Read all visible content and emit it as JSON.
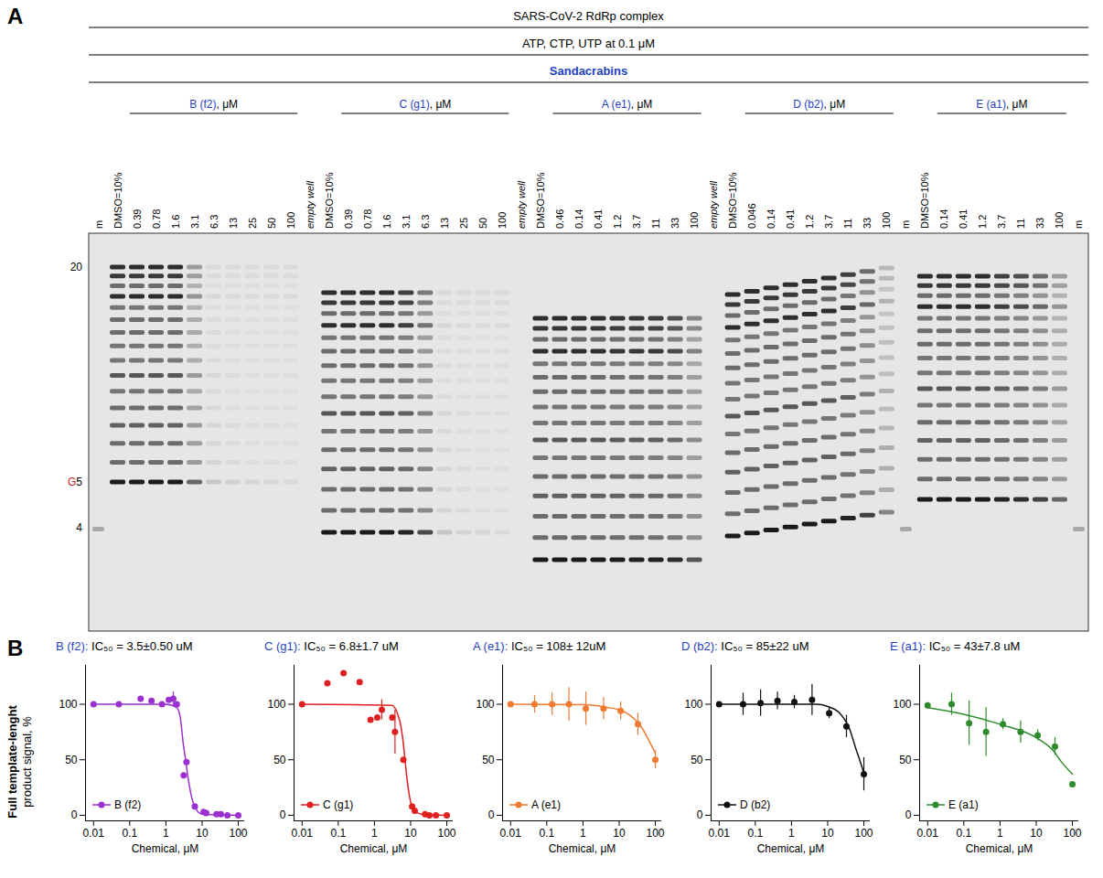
{
  "panel_a": {
    "letter": "A",
    "headers": [
      {
        "text": "SARS-CoV-2 RdRp complex"
      },
      {
        "text": "ATP, CTP, UTP at 0.1 μM"
      },
      {
        "text": "Sandacrabins",
        "color": "#1f3fbf"
      }
    ],
    "gel": {
      "size_markers": [
        {
          "label": "20"
        },
        {
          "prefix": "G",
          "label": "5"
        },
        {
          "label": "4"
        }
      ],
      "columns": [
        {
          "kind": "marker",
          "label": "m"
        },
        {
          "kind": "control",
          "label": "DMSO=10%",
          "signal": 100
        },
        {
          "kind": "group",
          "label": "B (f2)",
          "suffix": ", μM",
          "color": "#1f3fbf",
          "lanes": [
            {
              "label": "0.39",
              "signal": 100
            },
            {
              "label": "0.78",
              "signal": 100
            },
            {
              "label": "1.6",
              "signal": 100
            },
            {
              "label": "3.1",
              "signal": 60
            },
            {
              "label": "6.3",
              "signal": 10
            },
            {
              "label": "13",
              "signal": 4
            },
            {
              "label": "25",
              "signal": 2
            },
            {
              "label": "50",
              "signal": 1
            },
            {
              "label": "100",
              "signal": 0
            }
          ]
        },
        {
          "kind": "empty",
          "label": "empty well"
        },
        {
          "kind": "control",
          "label": "DMSO=10%",
          "signal": 100
        },
        {
          "kind": "group",
          "label": "C (g1)",
          "suffix": ", μM",
          "color": "#1f3fbf",
          "lanes": [
            {
              "label": "0.39",
              "signal": 100
            },
            {
              "label": "0.78",
              "signal": 100
            },
            {
              "label": "1.6",
              "signal": 100
            },
            {
              "label": "3.1",
              "signal": 95
            },
            {
              "label": "6.3",
              "signal": 75
            },
            {
              "label": "13",
              "signal": 10
            },
            {
              "label": "25",
              "signal": 3
            },
            {
              "label": "50",
              "signal": 1
            },
            {
              "label": "100",
              "signal": 0
            }
          ]
        },
        {
          "kind": "empty",
          "label": "empty well"
        },
        {
          "kind": "control",
          "label": "DMSO=10%",
          "signal": 100
        },
        {
          "kind": "group",
          "label": "A (e1)",
          "suffix": ", μM",
          "color": "#1f3fbf",
          "lanes": [
            {
              "label": "0.46",
              "signal": 100
            },
            {
              "label": "0.14",
              "signal": 100
            },
            {
              "label": "0.41",
              "signal": 100
            },
            {
              "label": "1.2",
              "signal": 98
            },
            {
              "label": "3.7",
              "signal": 97
            },
            {
              "label": "11",
              "signal": 96
            },
            {
              "label": "33",
              "signal": 90
            },
            {
              "label": "100",
              "signal": 70
            }
          ]
        },
        {
          "kind": "empty",
          "label": "empty well"
        },
        {
          "kind": "control",
          "label": "DMSO=10%",
          "signal": 100
        },
        {
          "kind": "group",
          "label": "D (b2)",
          "suffix": ", μM",
          "color": "#1f3fbf",
          "lanes": [
            {
              "label": "0.046",
              "signal": 100
            },
            {
              "label": "0.14",
              "signal": 100
            },
            {
              "label": "0.41",
              "signal": 100
            },
            {
              "label": "1.2",
              "signal": 100
            },
            {
              "label": "3.7",
              "signal": 100
            },
            {
              "label": "11",
              "signal": 95
            },
            {
              "label": "33",
              "signal": 80
            },
            {
              "label": "100",
              "signal": 45
            }
          ]
        },
        {
          "kind": "marker",
          "label": "m"
        },
        {
          "kind": "control",
          "label": "DMSO=10%",
          "signal": 100
        },
        {
          "kind": "group",
          "label": "E (a1)",
          "suffix": ", μM",
          "color": "#1f3fbf",
          "lanes": [
            {
              "label": "0.14",
              "signal": 100
            },
            {
              "label": "0.41",
              "signal": 100
            },
            {
              "label": "1.2",
              "signal": 100
            },
            {
              "label": "3.7",
              "signal": 95
            },
            {
              "label": "11",
              "signal": 90
            },
            {
              "label": "33",
              "signal": 80
            },
            {
              "label": "100",
              "signal": 60
            }
          ]
        },
        {
          "kind": "marker",
          "label": "m"
        }
      ]
    }
  },
  "panel_b": {
    "letter": "B"
  },
  "chart_data": [
    {
      "type": "scatter",
      "title": "B (f2):",
      "subtitle": "IC₅₀ = 3.5±0.50 uM",
      "ylabel": [
        "Full template-lenght",
        "product signal, %"
      ],
      "xlabel": "Chemical, μM",
      "log": "x",
      "xlim": [
        0.006,
        150
      ],
      "xticks": [
        0.01,
        0.1,
        1,
        10,
        100
      ],
      "ylim": [
        -5,
        135
      ],
      "yticks": [
        0,
        50,
        100
      ],
      "grid": false,
      "legend": "lower left",
      "series": [
        {
          "name": "B (f2)",
          "color": "#9b30d0",
          "marker": "circle",
          "x": [
            0.01,
            0.05,
            0.2,
            0.4,
            0.78,
            1.2,
            1.6,
            2.0,
            3.1,
            3.7,
            6.3,
            11,
            13,
            25,
            33,
            50,
            100
          ],
          "values": [
            100,
            100,
            105,
            103,
            100,
            104,
            105,
            100,
            36,
            48,
            8,
            3,
            2,
            1,
            1,
            0,
            0
          ],
          "errors": [
            null,
            null,
            null,
            null,
            null,
            null,
            6,
            null,
            null,
            null,
            null,
            null,
            null,
            null,
            null,
            null,
            null
          ],
          "curve": {
            "line_style": "solid",
            "x": [
              0.01,
              1,
              2,
              2.5,
              3,
              3.5,
              4,
              5,
              7,
              10,
              100
            ],
            "values": [
              100,
              100,
              97,
              88,
              65,
              50,
              36,
              18,
              5,
              1,
              0
            ]
          }
        }
      ]
    },
    {
      "type": "scatter",
      "title": "C (g1):",
      "subtitle": "IC₅₀ = 6.8±1.7 uM",
      "xlabel": "Chemical, μM",
      "log": "x",
      "xlim": [
        0.006,
        150
      ],
      "xticks": [
        0.01,
        0.1,
        1,
        10,
        100
      ],
      "ylim": [
        -5,
        135
      ],
      "yticks": [
        0,
        50,
        100
      ],
      "grid": false,
      "legend": "lower left",
      "series": [
        {
          "name": "C (g1)",
          "color": "#e02020",
          "marker": "circle",
          "x": [
            0.01,
            0.05,
            0.14,
            0.39,
            0.78,
            1.2,
            1.6,
            3.1,
            3.7,
            6.3,
            11,
            13,
            25,
            33,
            50,
            100
          ],
          "values": [
            100,
            119,
            128,
            120,
            86,
            88,
            95,
            88,
            75,
            50,
            8,
            4,
            1,
            0,
            0,
            0
          ],
          "errors": [
            null,
            null,
            null,
            null,
            null,
            null,
            9,
            null,
            20,
            null,
            null,
            null,
            null,
            null,
            null,
            null
          ],
          "curve": {
            "line_style": "solid",
            "x": [
              0.01,
              3,
              5,
              6,
              7,
              8,
              10,
              12,
              20,
              100
            ],
            "values": [
              100,
              99,
              85,
              70,
              50,
              32,
              12,
              5,
              1,
              0
            ]
          }
        }
      ]
    },
    {
      "type": "scatter",
      "title": "A (e1):",
      "subtitle": "IC₅₀ = 108± 12uM",
      "xlabel": "Chemical, μM",
      "log": "x",
      "xlim": [
        0.006,
        150
      ],
      "xticks": [
        0.01,
        0.1,
        1,
        10,
        100
      ],
      "ylim": [
        -5,
        135
      ],
      "yticks": [
        0,
        50,
        100
      ],
      "grid": false,
      "legend": "lower left",
      "series": [
        {
          "name": "A (e1)",
          "color": "#f07a30",
          "marker": "circle",
          "x": [
            0.01,
            0.046,
            0.14,
            0.41,
            1.2,
            3.7,
            11,
            33,
            100
          ],
          "values": [
            100,
            100,
            100,
            100,
            96,
            96,
            94,
            82,
            50
          ],
          "errors": [
            null,
            8,
            10,
            15,
            15,
            10,
            8,
            10,
            8
          ],
          "curve": {
            "line_style": "solid",
            "x": [
              0.01,
              1,
              5,
              10,
              20,
              40,
              70,
              100
            ],
            "values": [
              100,
              99.5,
              97,
              95,
              90,
              80,
              66,
              56
            ]
          }
        }
      ]
    },
    {
      "type": "scatter",
      "title": "D (b2):",
      "subtitle": "IC₅₀ = 85±22 uM",
      "xlabel": "Chemical, μM",
      "log": "x",
      "xlim": [
        0.006,
        150
      ],
      "xticks": [
        0.01,
        0.1,
        1,
        10,
        100
      ],
      "ylim": [
        -5,
        135
      ],
      "yticks": [
        0,
        50,
        100
      ],
      "grid": false,
      "legend": "lower left",
      "series": [
        {
          "name": "D (b2)",
          "color": "#111111",
          "marker": "circle",
          "x": [
            0.01,
            0.046,
            0.14,
            0.41,
            1.2,
            3.7,
            11,
            33,
            100
          ],
          "values": [
            100,
            100,
            101,
            103,
            102,
            104,
            92,
            80,
            37
          ],
          "errors": [
            null,
            10,
            12,
            8,
            6,
            14,
            5,
            10,
            15
          ],
          "curve": {
            "line_style": "solid",
            "x": [
              0.01,
              5,
              10,
              20,
              40,
              60,
              80,
              100
            ],
            "values": [
              100,
              100,
              98,
              93,
              78,
              60,
              48,
              38
            ]
          }
        }
      ]
    },
    {
      "type": "scatter",
      "title": "E (a1):",
      "subtitle": "IC₅₀ = 43±7.8 uM",
      "xlabel": "Chemical, μM",
      "log": "x",
      "xlim": [
        0.006,
        150
      ],
      "xticks": [
        0.01,
        0.1,
        1,
        10,
        100
      ],
      "ylim": [
        -5,
        135
      ],
      "yticks": [
        0,
        50,
        100
      ],
      "grid": false,
      "legend": "lower left",
      "series": [
        {
          "name": "E (a1)",
          "color": "#2e8b2e",
          "marker": "circle",
          "x": [
            0.01,
            0.046,
            0.14,
            0.41,
            1.2,
            3.7,
            11,
            33,
            100
          ],
          "values": [
            99,
            100,
            83,
            75,
            82,
            75,
            72,
            62,
            28
          ],
          "errors": [
            null,
            10,
            20,
            22,
            5,
            10,
            5,
            8,
            null
          ],
          "curve": {
            "line_style": "solid",
            "x": [
              0.01,
              0.1,
              1,
              10,
              30,
              50,
              100
            ],
            "values": [
              97,
              91,
              82,
              70,
              58,
              48,
              37
            ]
          }
        }
      ]
    }
  ]
}
